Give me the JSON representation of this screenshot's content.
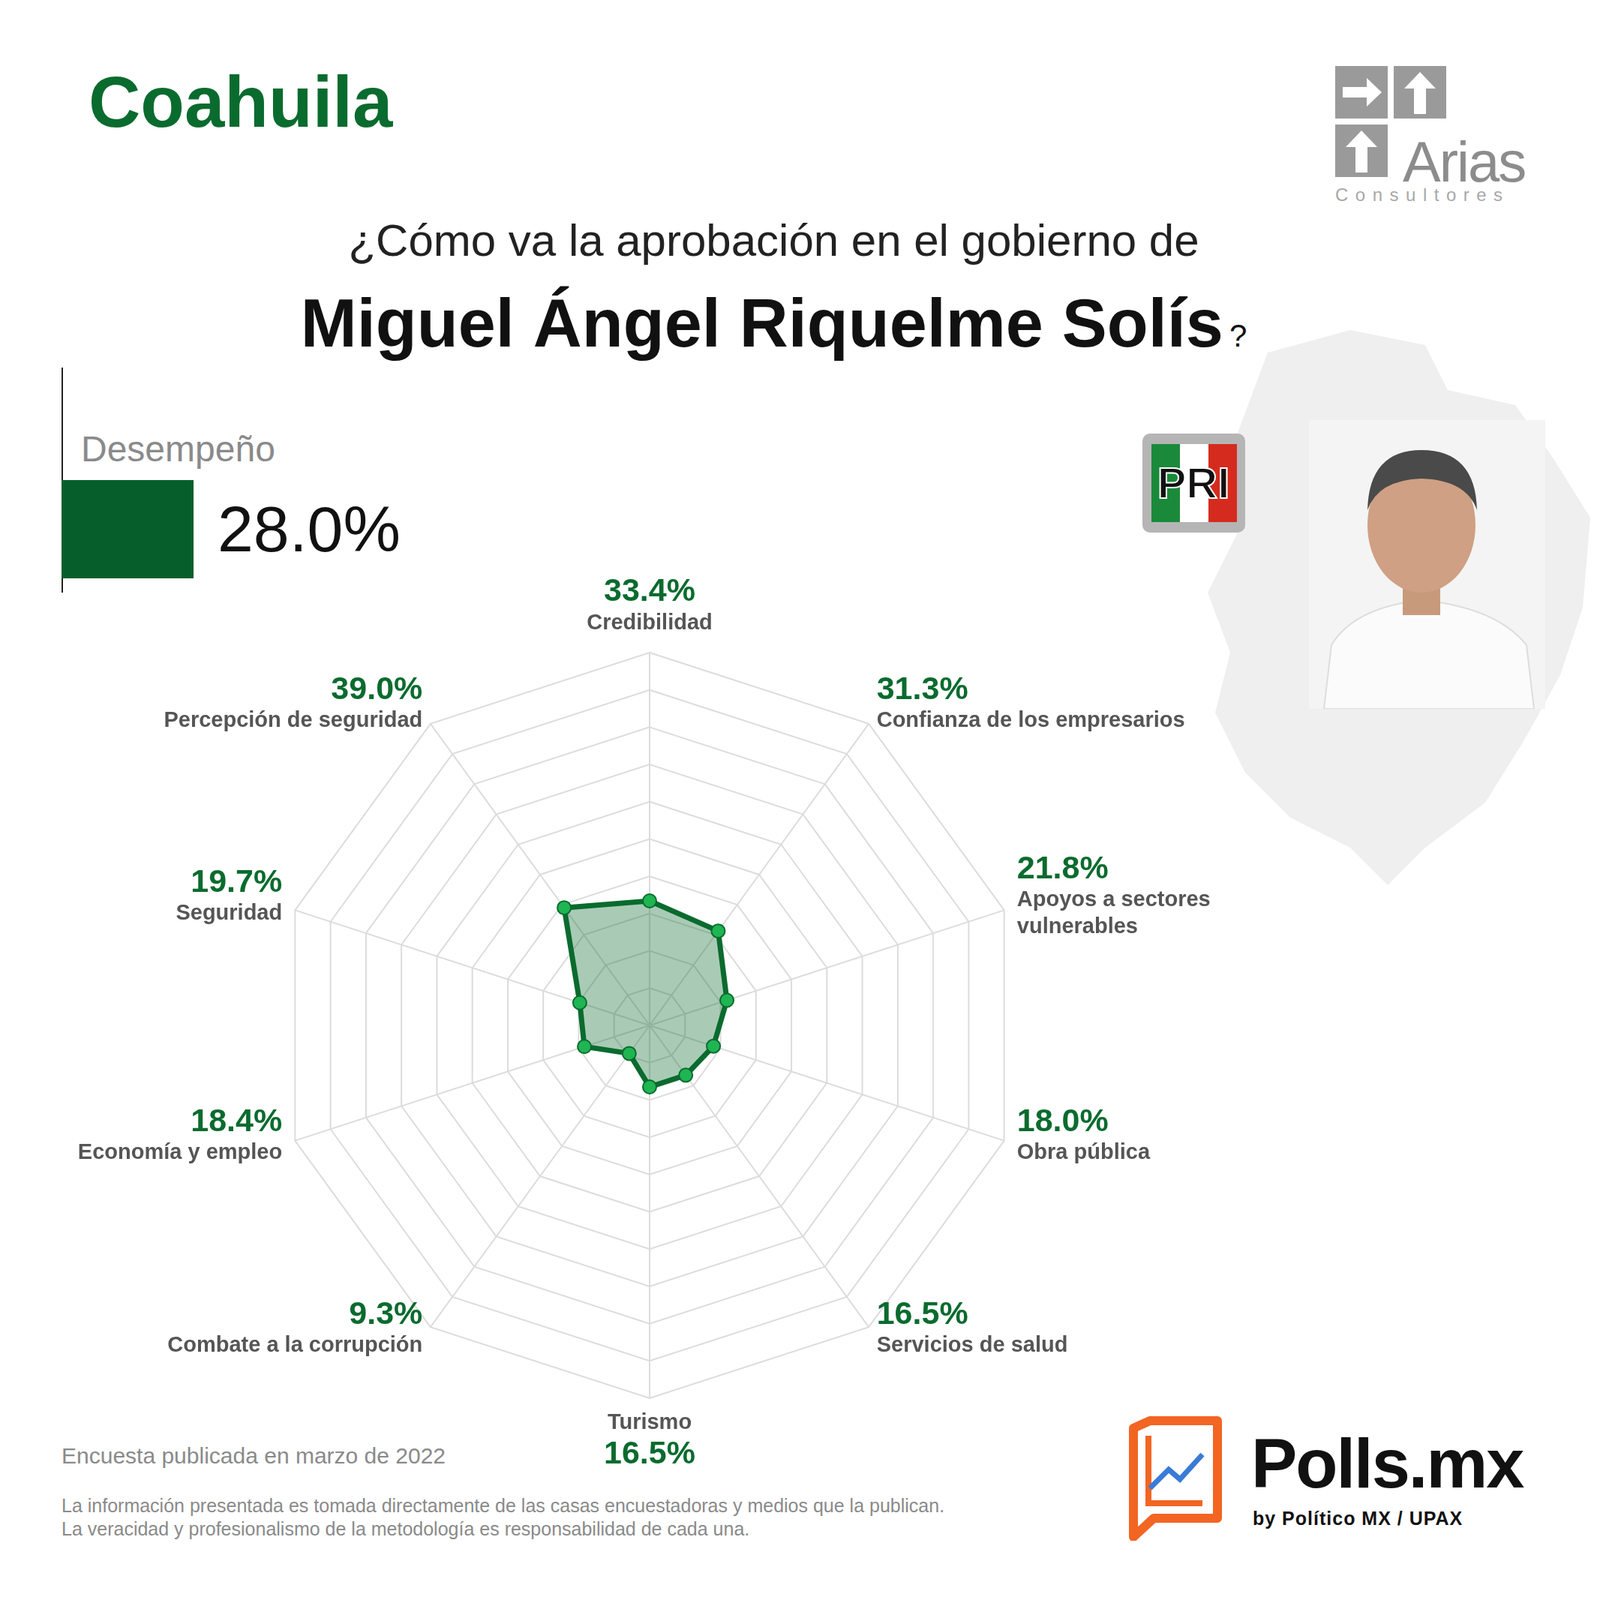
{
  "header": {
    "title": "Coahuila",
    "question": "¿Cómo va la aprobación en el gobierno de",
    "name": "Miguel Ángel Riquelme Solís",
    "question_mark": "?",
    "party": "PRI"
  },
  "logo": {
    "name": "Arias",
    "subtitle": "Consultores"
  },
  "desempeno": {
    "label": "Desempeño",
    "value": "28.0%"
  },
  "chart_data": {
    "type": "radar",
    "categories": [
      "Credibilidad",
      "Confianza de los empresarios",
      "Apoyos a sectores vulnerables",
      "Obra pública",
      "Servicios de salud",
      "Turismo",
      "Combate a la corrupción",
      "Economía y empleo",
      "Seguridad",
      "Percepción de seguridad"
    ],
    "values": [
      33.4,
      31.3,
      21.8,
      18.0,
      16.5,
      16.5,
      9.3,
      18.4,
      19.7,
      39.0
    ],
    "value_labels": [
      "33.4%",
      "31.3%",
      "21.8%",
      "18.0%",
      "16.5%",
      "16.5%",
      "9.3%",
      "18.4%",
      "19.7%",
      "39.0%"
    ],
    "color": "#0a6b2e",
    "ylim": [
      0,
      100
    ],
    "yticks": [
      0,
      10,
      20,
      30,
      40,
      50,
      60,
      70,
      80,
      90,
      100
    ],
    "grid": true,
    "tick_labels": false,
    "data_labels": true
  },
  "footer": {
    "note": "Encuesta publicada en marzo de 2022",
    "disclaimer": [
      "La información presentada es tomada directamente de las casas encuestadoras y medios que la publican.",
      "La veracidad y profesionalismo de la metodología es responsabilidad de cada una."
    ],
    "brand": "Polls.mx",
    "brand_byline": "by Político MX /",
    "brand_partner": "UPAX"
  }
}
